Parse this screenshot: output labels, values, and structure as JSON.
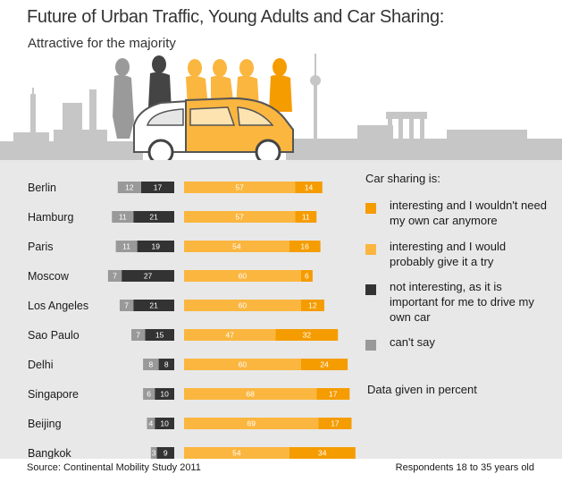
{
  "title": "Future of Urban Traffic, Young Adults and Car Sharing:",
  "subtitle": "Attractive for the majority",
  "legend": {
    "title": "Car sharing is:",
    "items": [
      {
        "label": "interesting and I wouldn't need my own car anymore",
        "color": "#f59c00"
      },
      {
        "label": "interesting and I would probably give it a try",
        "color": "#fbb63f"
      },
      {
        "label": "not interesting, as it is important for me to drive my own car",
        "color": "#333333"
      },
      {
        "label": "can't say",
        "color": "#999999"
      }
    ]
  },
  "note": "Data given in percent",
  "footer": {
    "source": "Source: Continental Mobility Study 2011",
    "respondents": "Respondents 18 to 35 years old"
  },
  "chart_data": {
    "type": "bar",
    "stacked": true,
    "orientation": "horizontal",
    "title": "Future of Urban Traffic, Young Adults and Car Sharing:",
    "subtitle": "Attractive for the majority",
    "unit": "percent",
    "categories": [
      "Berlin",
      "Hamburg",
      "Paris",
      "Moscow",
      "Los Angeles",
      "Sao Paulo",
      "Delhi",
      "Singapore",
      "Beijing",
      "Bangkok"
    ],
    "series": [
      {
        "name": "interesting and I would probably give it a try",
        "color": "#fbb63f",
        "values": [
          57,
          57,
          54,
          60,
          60,
          47,
          60,
          68,
          69,
          54
        ]
      },
      {
        "name": "interesting and I wouldn't need my own car anymore",
        "color": "#f59c00",
        "values": [
          14,
          11,
          16,
          6,
          12,
          32,
          24,
          17,
          17,
          34
        ]
      },
      {
        "name": "not interesting, as it is important for me to drive my own car",
        "color": "#333333",
        "values": [
          17,
          21,
          19,
          27,
          21,
          15,
          8,
          10,
          10,
          9
        ]
      },
      {
        "name": "can't say",
        "color": "#999999",
        "values": [
          12,
          11,
          11,
          7,
          7,
          7,
          8,
          6,
          4,
          3
        ]
      }
    ],
    "legend_position": "right",
    "grid": false
  }
}
